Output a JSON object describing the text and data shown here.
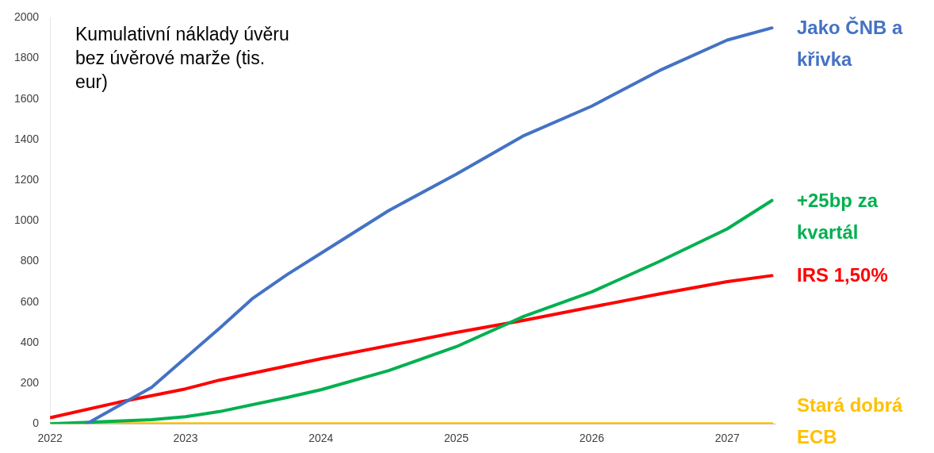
{
  "chart_data": {
    "type": "line",
    "title": "Kumulativní náklady úvěru bez úvěrové marže (tis. eur)",
    "xlim": [
      2022,
      2027.35
    ],
    "xticks": [
      2022,
      2023,
      2024,
      2025,
      2026,
      2027
    ],
    "ylim": [
      0,
      2000
    ],
    "yticks": [
      0,
      200,
      400,
      600,
      800,
      1000,
      1200,
      1400,
      1600,
      1800,
      2000
    ],
    "grid": false,
    "legend": false,
    "marker": "none",
    "line_style": "solid",
    "series": [
      {
        "name": "Jako ČNB a křivka",
        "color": "#4472c4",
        "x": [
          2022.27,
          2022.75,
          2023.25,
          2023.5,
          2023.75,
          2024,
          2024.5,
          2025,
          2025.5,
          2026,
          2026.5,
          2027,
          2027.33
        ],
        "values": [
          0,
          180,
          470,
          620,
          735,
          840,
          1050,
          1230,
          1420,
          1565,
          1740,
          1890,
          1950
        ]
      },
      {
        "name": "+25bp za kvartál",
        "color": "#00b050",
        "x": [
          2022,
          2022.75,
          2023,
          2023.25,
          2023.75,
          2024,
          2024.5,
          2025,
          2025.5,
          2026,
          2026.5,
          2027,
          2027.33
        ],
        "values": [
          0,
          20,
          35,
          60,
          130,
          168,
          262,
          380,
          530,
          650,
          800,
          960,
          1100
        ]
      },
      {
        "name": "IRS 1,50%",
        "color": "#ff0000",
        "x": [
          2022,
          2022.5,
          2023,
          2023.25,
          2024,
          2025,
          2025.5,
          2026,
          2026.5,
          2027,
          2027.33
        ],
        "values": [
          30,
          105,
          172,
          215,
          320,
          450,
          510,
          575,
          640,
          700,
          730
        ]
      },
      {
        "name": "Stará dobrá ECB",
        "color": "#ffc000",
        "x": [
          2022,
          2027.33
        ],
        "values": [
          0,
          0
        ]
      }
    ]
  }
}
